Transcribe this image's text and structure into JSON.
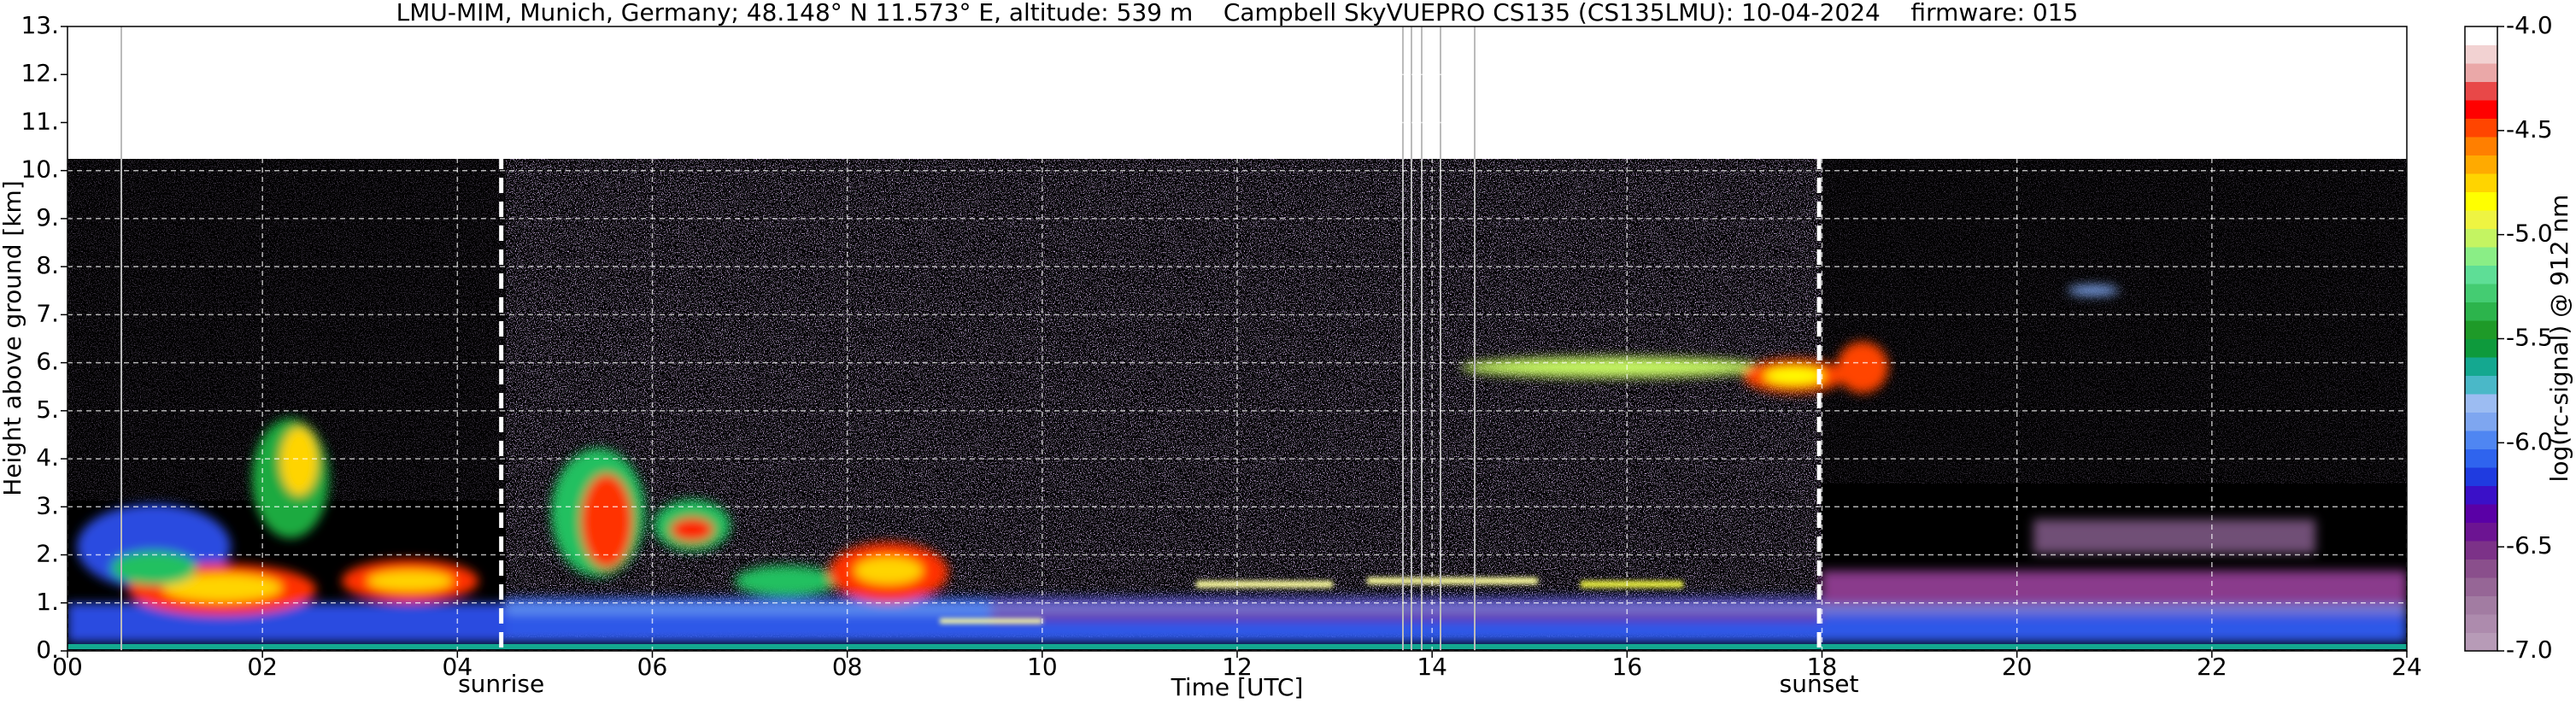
{
  "chart_data": {
    "type": "heatmap",
    "title": "LMU-MIM, Munich, Germany; 48.148° N 11.573° E, altitude: 539 m    Campbell SkyVUEPRO CS135 (CS135LMU): 10-04-2024    firmware: 015",
    "x_label": "Time [UTC]",
    "y_label": "Height above ground [km]",
    "xlim": [
      0,
      24
    ],
    "xticks": [
      {
        "value": 0,
        "label": "00"
      },
      {
        "value": 2,
        "label": "02"
      },
      {
        "value": 4,
        "label": "04"
      },
      {
        "value": 6,
        "label": "06"
      },
      {
        "value": 8,
        "label": "08"
      },
      10,
      12,
      14,
      16,
      18,
      20,
      22,
      24
    ],
    "ylim": [
      0,
      13
    ],
    "yticks": [
      {
        "value": 0,
        "label": "0."
      },
      {
        "value": 1,
        "label": "1."
      },
      {
        "value": 2,
        "label": "2."
      },
      {
        "value": 3,
        "label": "3."
      },
      {
        "value": 4,
        "label": "4."
      },
      {
        "value": 5,
        "label": "5."
      },
      {
        "value": 6,
        "label": "6."
      },
      {
        "value": 7,
        "label": "7."
      },
      {
        "value": 8,
        "label": "8."
      },
      {
        "value": 9,
        "label": "9."
      },
      {
        "value": 10,
        "label": "10."
      },
      {
        "value": 11,
        "label": "11."
      },
      {
        "value": 12,
        "label": "12."
      },
      {
        "value": 13,
        "label": "13."
      }
    ],
    "grid": true,
    "annotations": [
      {
        "text": "sunrise",
        "x": 4.45
      },
      {
        "text": "sunset",
        "x": 17.97
      }
    ],
    "colorbar": {
      "label": "log(rc-signal) @ 912 nm",
      "lim": [
        -7,
        -4
      ],
      "ticks": [
        {
          "value": -7,
          "label": "-7.0"
        },
        -6.5,
        {
          "value": -6,
          "label": "-6.0"
        },
        -5.5,
        {
          "value": -5,
          "label": "-5.0"
        },
        -4.5,
        {
          "value": -4,
          "label": "-4.0"
        }
      ],
      "colors": [
        "#b79bb7",
        "#ad8bad",
        "#a27ca2",
        "#966696",
        "#8a4f8c",
        "#7c3288",
        "#6c1492",
        "#5a00a6",
        "#3a10c8",
        "#1f3be0",
        "#2f64ee",
        "#4f86f2",
        "#7ea6f0",
        "#9cbcf2",
        "#4ab8c8",
        "#14a890",
        "#0e9a3c",
        "#1e9a28",
        "#2cb44c",
        "#44cc72",
        "#5ede96",
        "#8aee86",
        "#c4f462",
        "#eef442",
        "#ffff00",
        "#ffd400",
        "#ffaa00",
        "#ff7f00",
        "#ff4500",
        "#ff0000",
        "#e84848",
        "#eaa8a8",
        "#f2d2d2",
        "#ffffff"
      ]
    }
  }
}
